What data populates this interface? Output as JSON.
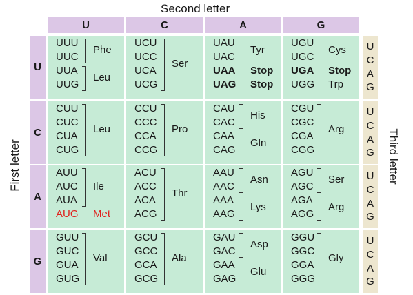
{
  "titles": {
    "second_letter": "Second letter",
    "first_letter": "First letter",
    "third_letter": "Third letter"
  },
  "second_letters": [
    "U",
    "C",
    "A",
    "G"
  ],
  "first_letters": [
    "U",
    "C",
    "A",
    "G"
  ],
  "third_letters": [
    "U",
    "C",
    "A",
    "G"
  ],
  "colors": {
    "header": "#dcc7e6",
    "cell": "#c6ebd6",
    "third": "#ede6cf",
    "start": "#e0201c"
  },
  "rows": [
    [
      {
        "codons": [
          "UUU",
          "UUC",
          "UUA",
          "UUG"
        ],
        "groups": [
          {
            "start": 0,
            "end": 1,
            "aa": "Phe"
          },
          {
            "start": 2,
            "end": 3,
            "aa": "Leu"
          }
        ]
      },
      {
        "codons": [
          "UCU",
          "UCC",
          "UCA",
          "UCG"
        ],
        "groups": [
          {
            "start": 0,
            "end": 3,
            "aa": "Ser"
          }
        ]
      },
      {
        "codons": [
          "UAU",
          "UAC",
          "UAA",
          "UAG"
        ],
        "groups": [
          {
            "start": 0,
            "end": 1,
            "aa": "Tyr"
          },
          {
            "single": 2,
            "aa": "Stop",
            "bold": true
          },
          {
            "single": 3,
            "aa": "Stop",
            "bold": true
          }
        ]
      },
      {
        "codons": [
          "UGU",
          "UGC",
          "UGA",
          "UGG"
        ],
        "groups": [
          {
            "start": 0,
            "end": 1,
            "aa": "Cys"
          },
          {
            "single": 2,
            "aa": "Stop",
            "bold": true
          },
          {
            "single": 3,
            "aa": "Trp"
          }
        ]
      }
    ],
    [
      {
        "codons": [
          "CUU",
          "CUC",
          "CUA",
          "CUG"
        ],
        "groups": [
          {
            "start": 0,
            "end": 3,
            "aa": "Leu"
          }
        ]
      },
      {
        "codons": [
          "CCU",
          "CCC",
          "CCA",
          "CCG"
        ],
        "groups": [
          {
            "start": 0,
            "end": 3,
            "aa": "Pro"
          }
        ]
      },
      {
        "codons": [
          "CAU",
          "CAC",
          "CAA",
          "CAG"
        ],
        "groups": [
          {
            "start": 0,
            "end": 1,
            "aa": "His"
          },
          {
            "start": 2,
            "end": 3,
            "aa": "Gln"
          }
        ]
      },
      {
        "codons": [
          "CGU",
          "CGC",
          "CGA",
          "CGG"
        ],
        "groups": [
          {
            "start": 0,
            "end": 3,
            "aa": "Arg"
          }
        ]
      }
    ],
    [
      {
        "codons": [
          "AUU",
          "AUC",
          "AUA",
          "AUG"
        ],
        "groups": [
          {
            "start": 0,
            "end": 2,
            "aa": "Ile"
          },
          {
            "single": 3,
            "aa": "Met",
            "red": true
          }
        ]
      },
      {
        "codons": [
          "ACU",
          "ACC",
          "ACA",
          "ACG"
        ],
        "groups": [
          {
            "start": 0,
            "end": 3,
            "aa": "Thr"
          }
        ]
      },
      {
        "codons": [
          "AAU",
          "AAC",
          "AAA",
          "AAG"
        ],
        "groups": [
          {
            "start": 0,
            "end": 1,
            "aa": "Asn"
          },
          {
            "start": 2,
            "end": 3,
            "aa": "Lys"
          }
        ]
      },
      {
        "codons": [
          "AGU",
          "AGC",
          "AGA",
          "AGG"
        ],
        "groups": [
          {
            "start": 0,
            "end": 1,
            "aa": "Ser"
          },
          {
            "start": 2,
            "end": 3,
            "aa": "Arg"
          }
        ]
      }
    ],
    [
      {
        "codons": [
          "GUU",
          "GUC",
          "GUA",
          "GUG"
        ],
        "groups": [
          {
            "start": 0,
            "end": 3,
            "aa": "Val"
          }
        ]
      },
      {
        "codons": [
          "GCU",
          "GCC",
          "GCA",
          "GCG"
        ],
        "groups": [
          {
            "start": 0,
            "end": 3,
            "aa": "Ala"
          }
        ]
      },
      {
        "codons": [
          "GAU",
          "GAC",
          "GAA",
          "GAG"
        ],
        "groups": [
          {
            "start": 0,
            "end": 1,
            "aa": "Asp"
          },
          {
            "start": 2,
            "end": 3,
            "aa": "Glu"
          }
        ]
      },
      {
        "codons": [
          "GGU",
          "GGC",
          "GGA",
          "GGG"
        ],
        "groups": [
          {
            "start": 0,
            "end": 3,
            "aa": "Gly"
          }
        ]
      }
    ]
  ]
}
